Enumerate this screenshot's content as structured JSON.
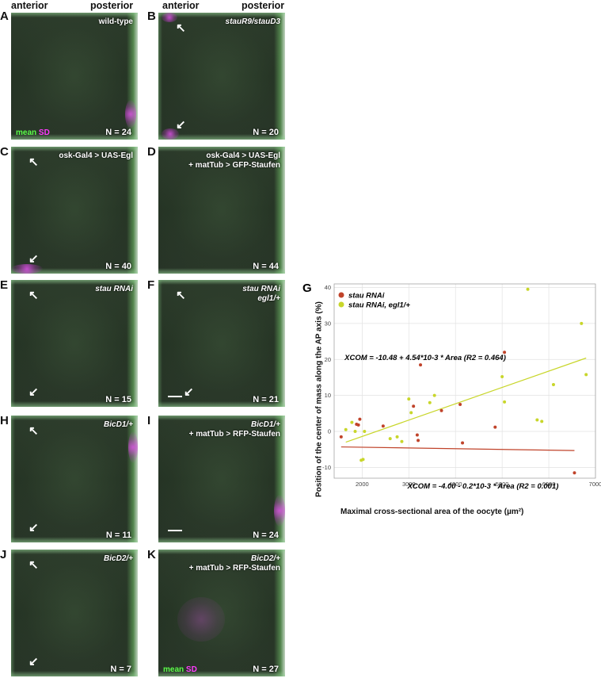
{
  "header": {
    "anterior_left": "anterior",
    "posterior_left": "posterior",
    "anterior_right": "anterior",
    "posterior_right": "posterior"
  },
  "legend_mean": "mean",
  "legend_sd": "SD",
  "panels": {
    "A": {
      "letter": "A",
      "caption": "wild-type",
      "n": "N = 24"
    },
    "B": {
      "letter": "B",
      "caption": "stauR9/stauD3",
      "n": "N = 20"
    },
    "C": {
      "letter": "C",
      "caption": "osk-Gal4 > UAS-Egl",
      "n": "N = 40"
    },
    "D": {
      "letter": "D",
      "caption_l1": "osk-Gal4 > UAS-Egl",
      "caption_l2": "+ matTub > GFP-Staufen",
      "n": "N = 44"
    },
    "E": {
      "letter": "E",
      "caption": "stau RNAi",
      "n": "N = 15"
    },
    "F": {
      "letter": "F",
      "caption_l1": "stau RNAi",
      "caption_l2": "egl1/+",
      "n": "N = 21"
    },
    "H": {
      "letter": "H",
      "caption": "BicD1/+",
      "n": "N = 11"
    },
    "I": {
      "letter": "I",
      "caption_l1": "BicD1/+",
      "caption_l2": "+ matTub > RFP-Staufen",
      "n": "N = 24"
    },
    "J": {
      "letter": "J",
      "caption": "BicD2/+",
      "n": "N = 7"
    },
    "K": {
      "letter": "K",
      "caption_l1": "BicD2/+",
      "caption_l2": "+ matTub > RFP-Staufen",
      "n": "N = 27"
    }
  },
  "chart_data": {
    "type": "scatter",
    "panel_letter": "G",
    "xlabel": "Maximal cross-sectional area of the oocyte (µm²)",
    "ylabel": "Position of the center of mass along the AP axis (%)",
    "xlim": [
      1400,
      7000
    ],
    "ylim": [
      -13,
      41
    ],
    "xticks": [
      2000,
      3000,
      4000,
      5000,
      6000,
      7000
    ],
    "yticks": [
      -10,
      0,
      10,
      20,
      30,
      40
    ],
    "grid": true,
    "legend_position": "top-left",
    "series": [
      {
        "name": "stau RNAi",
        "color": "#c0432a",
        "points": [
          [
            1550,
            -1.5
          ],
          [
            1880,
            2.0
          ],
          [
            1920,
            1.8
          ],
          [
            1950,
            3.4
          ],
          [
            2450,
            1.5
          ],
          [
            3100,
            7.0
          ],
          [
            3180,
            -1.0
          ],
          [
            3200,
            -2.5
          ],
          [
            3250,
            18.5
          ],
          [
            3700,
            5.8
          ],
          [
            4100,
            7.5
          ],
          [
            4150,
            -3.2
          ],
          [
            4850,
            1.2
          ],
          [
            5050,
            22.0
          ],
          [
            6550,
            -11.5
          ]
        ],
        "fit": {
          "intercept": -4.0,
          "slope": -0.0002,
          "x_range": [
            1550,
            6550
          ]
        },
        "equation": "XCOM = -4.00 - 0.2*10-3 * Area (R2 = 0.001)"
      },
      {
        "name": "stau RNAi, egl1/+",
        "color": "#c8d62a",
        "points": [
          [
            1650,
            0.5
          ],
          [
            1780,
            2.5
          ],
          [
            1850,
            0.0
          ],
          [
            1980,
            -8.0
          ],
          [
            2020,
            -7.8
          ],
          [
            2050,
            0.0
          ],
          [
            2600,
            -2.0
          ],
          [
            2750,
            -1.5
          ],
          [
            2850,
            -2.8
          ],
          [
            3000,
            9.0
          ],
          [
            3050,
            5.2
          ],
          [
            3450,
            8.0
          ],
          [
            3550,
            10.0
          ],
          [
            5000,
            15.2
          ],
          [
            5050,
            8.2
          ],
          [
            5550,
            39.5
          ],
          [
            5750,
            3.2
          ],
          [
            5850,
            2.8
          ],
          [
            6100,
            13.0
          ],
          [
            6700,
            30.0
          ],
          [
            6800,
            15.8
          ]
        ],
        "fit": {
          "intercept": -10.48,
          "slope": 0.00454,
          "x_range": [
            1650,
            6800
          ]
        },
        "equation": "XCOM = -10.48 + 4.54*10-3 * Area (R2 = 0.464)"
      }
    ]
  }
}
